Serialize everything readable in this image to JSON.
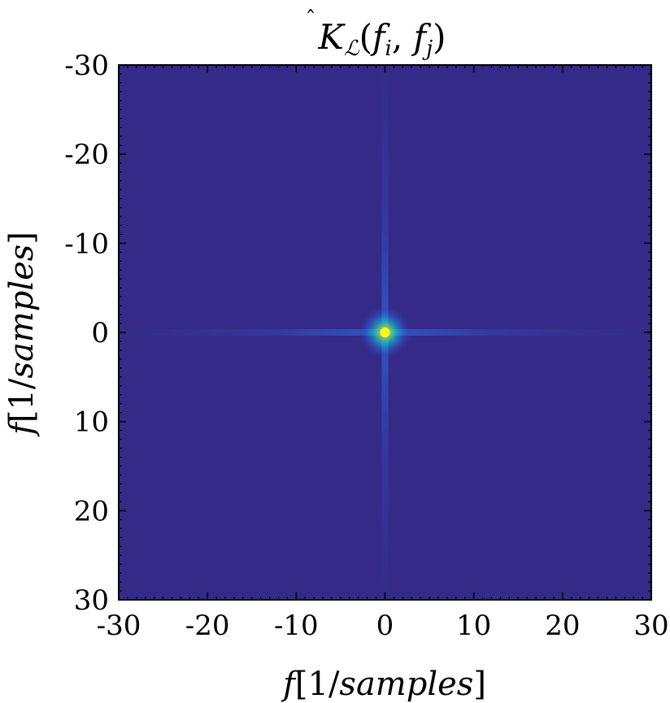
{
  "chart_data": {
    "type": "heatmap",
    "title": "K̂ℒ(fi, fj)",
    "title_parts": {
      "K": "K",
      "sub": "ℒ",
      "open": "(",
      "fi": "f",
      "i": "i",
      "comma": ", ",
      "fj": "f",
      "j": "j",
      "close": ")"
    },
    "xlabel": "f[1/samples]",
    "ylabel": "f[1/samples]",
    "label_parts": {
      "f": "f",
      "bracket_open": "[",
      "one": "1",
      "slash": "/",
      "samples": "samples",
      "bracket_close": "]"
    },
    "xlim": [
      -30,
      30
    ],
    "ylim": [
      -30,
      30
    ],
    "y_axis_direction": "top-to-bottom increasing",
    "x_ticks": [
      "-30",
      "-20",
      "-10",
      "0",
      "10",
      "20",
      "30"
    ],
    "y_ticks": [
      "-30",
      "-20",
      "-10",
      "0",
      "10",
      "20",
      "30"
    ],
    "peak": {
      "x": 0,
      "y": 0,
      "value": 1.0
    },
    "background_value": 0.0,
    "colormap": [
      "#352a87",
      "#2a6be0",
      "#12bdb9",
      "#a5be6a",
      "#f9fb0e"
    ],
    "grid": false,
    "colorbar": false
  }
}
